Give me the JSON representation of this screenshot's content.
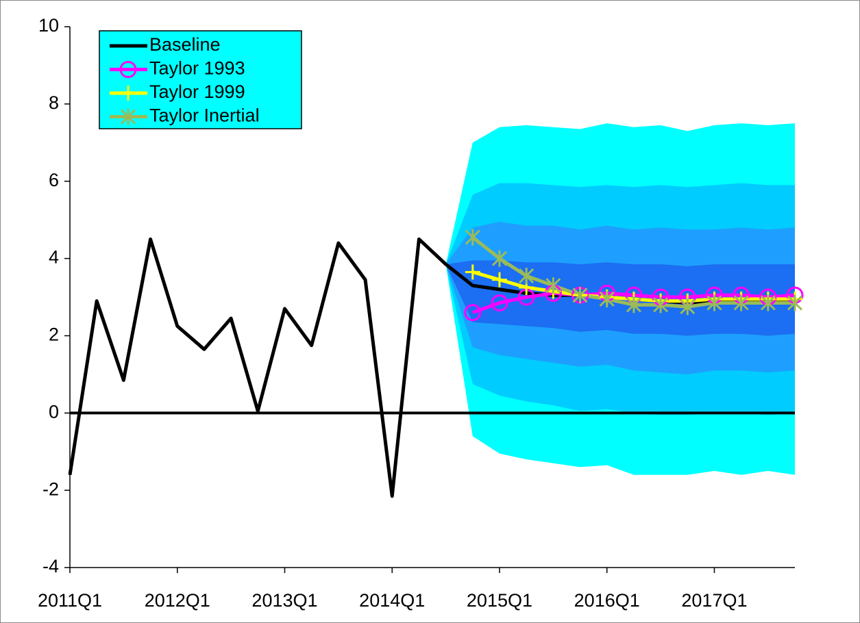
{
  "chart_data": {
    "type": "fan",
    "categories": [
      "2011Q1",
      null,
      null,
      null,
      "2012Q1",
      null,
      null,
      null,
      "2013Q1",
      null,
      null,
      null,
      "2014Q1",
      null,
      null,
      null,
      "2015Q1",
      null,
      null,
      null,
      "2016Q1",
      null,
      null,
      null,
      "2017Q1",
      null,
      null,
      null
    ],
    "ylim": [
      -4,
      10
    ],
    "yticks": [
      -4,
      -2,
      0,
      2,
      4,
      6,
      8,
      10
    ],
    "legend": "upper left",
    "legend_color": "#00ffff",
    "bands": [
      {
        "color": "#00ffff",
        "upper": [
          null,
          null,
          null,
          null,
          null,
          null,
          null,
          null,
          null,
          null,
          null,
          null,
          null,
          null,
          3.85,
          7.0,
          7.4,
          7.45,
          7.4,
          7.35,
          7.5,
          7.4,
          7.45,
          7.3,
          7.45,
          7.5,
          7.45,
          7.5
        ],
        "lower": [
          null,
          null,
          null,
          null,
          null,
          null,
          null,
          null,
          null,
          null,
          null,
          null,
          null,
          null,
          3.85,
          -0.6,
          -1.05,
          -1.2,
          -1.3,
          -1.4,
          -1.35,
          -1.6,
          -1.6,
          -1.6,
          -1.5,
          -1.6,
          -1.5,
          -1.6
        ]
      },
      {
        "color": "#00ccff",
        "upper": [
          null,
          null,
          null,
          null,
          null,
          null,
          null,
          null,
          null,
          null,
          null,
          null,
          null,
          null,
          3.85,
          5.65,
          5.95,
          5.95,
          5.9,
          5.85,
          5.9,
          5.85,
          5.9,
          5.85,
          5.9,
          5.95,
          5.9,
          5.9
        ],
        "lower": [
          null,
          null,
          null,
          null,
          null,
          null,
          null,
          null,
          null,
          null,
          null,
          null,
          null,
          null,
          3.85,
          0.75,
          0.45,
          0.3,
          0.2,
          0.05,
          0.1,
          0.0,
          -0.05,
          -0.05,
          0.0,
          0.0,
          -0.05,
          0.0
        ]
      },
      {
        "color": "#1e9fff",
        "upper": [
          null,
          null,
          null,
          null,
          null,
          null,
          null,
          null,
          null,
          null,
          null,
          null,
          null,
          null,
          3.85,
          4.8,
          4.95,
          4.85,
          4.85,
          4.75,
          4.85,
          4.75,
          4.8,
          4.75,
          4.75,
          4.8,
          4.75,
          4.8
        ],
        "lower": [
          null,
          null,
          null,
          null,
          null,
          null,
          null,
          null,
          null,
          null,
          null,
          null,
          null,
          null,
          3.85,
          1.7,
          1.5,
          1.4,
          1.3,
          1.2,
          1.25,
          1.1,
          1.05,
          1.0,
          1.1,
          1.1,
          1.05,
          1.1
        ]
      },
      {
        "color": "#1c6ef2",
        "upper": [
          null,
          null,
          null,
          null,
          null,
          null,
          null,
          null,
          null,
          null,
          null,
          null,
          null,
          null,
          3.85,
          3.95,
          3.95,
          3.9,
          3.9,
          3.85,
          3.9,
          3.85,
          3.85,
          3.8,
          3.85,
          3.85,
          3.85,
          3.85
        ],
        "lower": [
          null,
          null,
          null,
          null,
          null,
          null,
          null,
          null,
          null,
          null,
          null,
          null,
          null,
          null,
          3.85,
          2.35,
          2.3,
          2.25,
          2.2,
          2.1,
          2.15,
          2.05,
          2.05,
          2.0,
          2.05,
          2.05,
          2.0,
          2.05
        ]
      }
    ],
    "series": [
      {
        "name": "Baseline",
        "color": "#000000",
        "marker": "none",
        "values": [
          -1.6,
          2.9,
          0.85,
          4.5,
          2.25,
          1.65,
          2.45,
          0.05,
          2.7,
          1.75,
          4.4,
          3.45,
          -2.15,
          4.5,
          3.85,
          3.3,
          3.2,
          3.1,
          3.05,
          3.05,
          3.0,
          2.95,
          2.9,
          2.85,
          2.9,
          2.9,
          2.9,
          2.9
        ]
      },
      {
        "name": "Taylor 1993",
        "color": "#ff00ff",
        "marker": "circle",
        "values": [
          null,
          null,
          null,
          null,
          null,
          null,
          null,
          null,
          null,
          null,
          null,
          null,
          null,
          null,
          null,
          2.6,
          2.85,
          3.0,
          3.1,
          3.05,
          3.1,
          3.05,
          3.0,
          3.0,
          3.05,
          3.05,
          3.0,
          3.05
        ]
      },
      {
        "name": "Taylor 1999",
        "color": "#ffff00",
        "marker": "plus",
        "values": [
          null,
          null,
          null,
          null,
          null,
          null,
          null,
          null,
          null,
          null,
          null,
          null,
          null,
          null,
          null,
          3.65,
          3.45,
          3.25,
          3.15,
          3.05,
          3.0,
          2.95,
          2.9,
          2.9,
          2.95,
          2.95,
          2.95,
          2.95
        ]
      },
      {
        "name": "Taylor Inertial",
        "color": "#9bbb59",
        "marker": "star",
        "values": [
          null,
          null,
          null,
          null,
          null,
          null,
          null,
          null,
          null,
          null,
          null,
          null,
          null,
          null,
          null,
          4.55,
          4.0,
          3.55,
          3.3,
          3.05,
          2.95,
          2.8,
          2.8,
          2.75,
          2.85,
          2.85,
          2.85,
          2.85
        ]
      }
    ]
  }
}
